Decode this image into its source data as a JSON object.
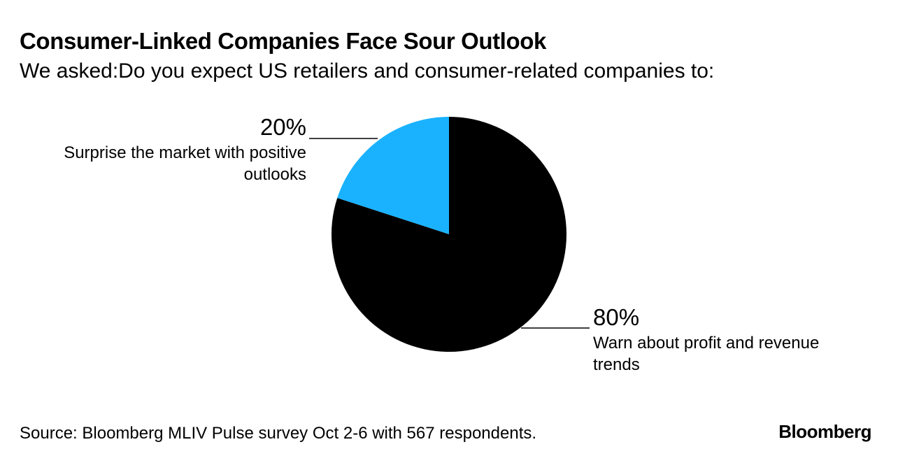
{
  "chart_data": {
    "type": "pie",
    "title": "Consumer-Linked Companies Face Sour Outlook",
    "subtitle": "We asked:Do you expect US retailers and consumer-related companies to:",
    "slices": [
      {
        "label": "Surprise the market with positive outlooks",
        "value": 20,
        "display": "20%",
        "color": "#1ab2ff"
      },
      {
        "label": "Warn about profit and revenue trends",
        "value": 80,
        "display": "80%",
        "color": "#000000"
      }
    ],
    "source": "Source: Bloomberg MLIV Pulse survey Oct 2-6 with 567 respondents."
  },
  "brand": "Bloomberg"
}
